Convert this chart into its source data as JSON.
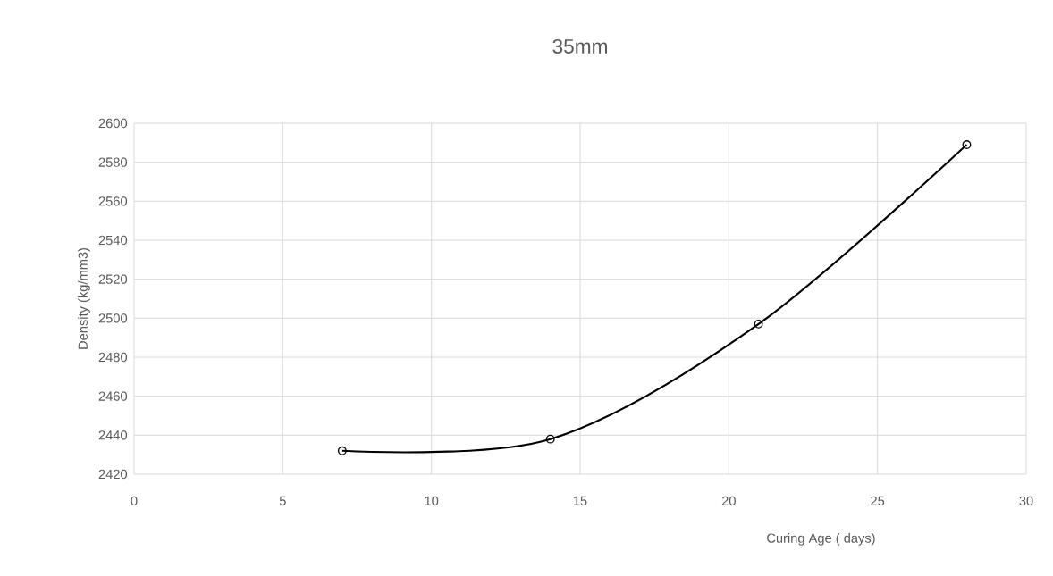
{
  "chart_data": {
    "type": "line",
    "title": "35mm",
    "xlabel": "Curing Age ( days)",
    "ylabel": "Density (kg/mm3)",
    "x": [
      7,
      14,
      21,
      28
    ],
    "series": [
      {
        "color": "#000000",
        "values": [
          2432,
          2438,
          2497,
          2589
        ]
      }
    ],
    "xlim": [
      0,
      30
    ],
    "xticks": [
      0,
      5,
      10,
      15,
      20,
      25,
      30
    ],
    "ylim": [
      2420,
      2600
    ],
    "yticks": [
      2420,
      2440,
      2460,
      2480,
      2500,
      2520,
      2540,
      2560,
      2580,
      2600
    ],
    "grid": true,
    "marker": "circle",
    "line_style": "solid"
  }
}
